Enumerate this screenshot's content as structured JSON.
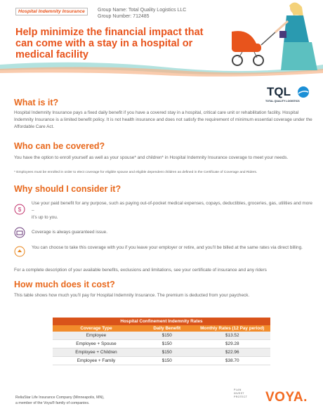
{
  "header": {
    "tag": "Hospital Indemnity Insurance",
    "group_name": "Group Name: Total Quality Logistics LLC",
    "group_number": "Group Number: 712485",
    "title": "Help minimize the financial impact that can come with a stay in a hospital or medical facility"
  },
  "logo": {
    "mark": "TQL",
    "tagline": "TOTAL QUALITY LOGISTICS"
  },
  "sections": [
    {
      "heading": "What is it?",
      "text": "Hospital Indemnity Insurance pays a fixed daily benefit if you have a covered stay in a hospital, critical care unit or rehabilitation facility. Hospital Indemnity Insurance is a limited benefit policy. It is not health insurance and does not satisfy the requirement of minimum essential coverage under the Affordable Care Act."
    },
    {
      "heading": "Who can be covered?",
      "text": "You have the option to enroll yourself as well as your spouse* and children* in Hospital Indemnity Insurance coverage to meet your needs.",
      "note": "* Employees must be enrolled in order to elect coverage for eligible spouse and eligible dependent children as defined in the Certificate of Coverage and Riders."
    },
    {
      "heading": "Why should I consider it?",
      "bullets": [
        "Use your paid benefit for any purpose, such as paying out-of-pocket medical expenses, copays, deductibles, groceries, gas, utilities and more –",
        "it’s up to you.",
        "Coverage is always guaranteed issue.",
        "You can choose to take this coverage with you if you leave your employer or retire, and you’ll be billed at the same rates via direct billing."
      ],
      "text": "For a complete description of your available benefits, exclusions and limitations, see your certificate of insurance and any riders"
    },
    {
      "heading": "How much does it cost?",
      "text": "This table shows how much you’ll pay for Hospital Indemnity Insurance. The premium is deducted from your paycheck."
    }
  ],
  "table": {
    "title": "Hospital Confinement Indemnity Rates",
    "columns": [
      "Coverage Type",
      "Daily Benefit",
      "Monthly Rates (12 Pay period)"
    ],
    "rows": [
      [
        "Employee",
        "$150",
        "$13.52"
      ],
      [
        "Employee + Spouse",
        "$150",
        "$29.28"
      ],
      [
        "Employee + Children",
        "$150",
        "$22.96"
      ],
      [
        "Employee + Family",
        "$150",
        "$38.70"
      ]
    ]
  },
  "footer": {
    "company": "ReliaStar Life Insurance Company (Minneapolis, MN),",
    "member": "a member of the Voya® family of companies.",
    "slogan": [
      "PLAN",
      "INVEST",
      "PROTECT"
    ],
    "brand": "VOYA."
  }
}
